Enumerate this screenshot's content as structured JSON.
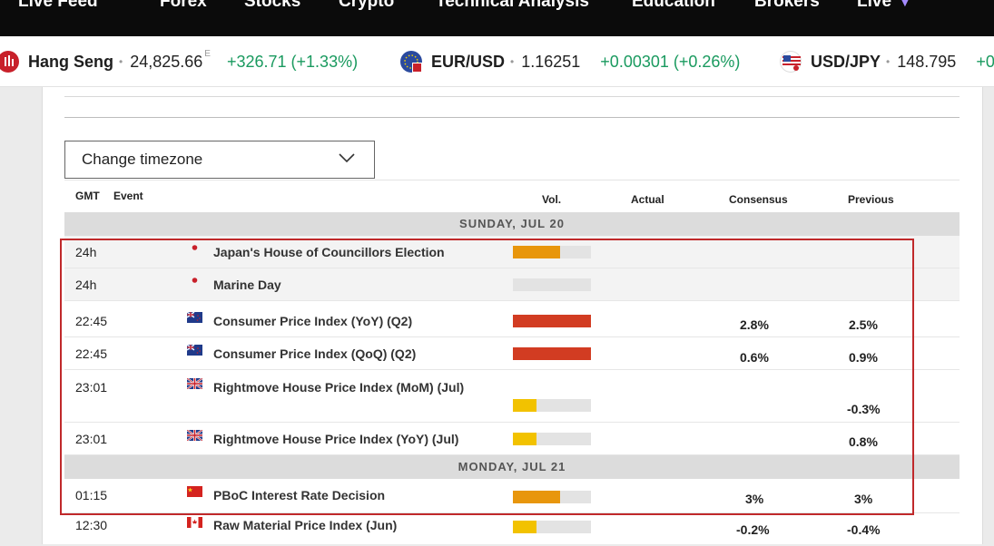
{
  "topnav": {
    "items": [
      "Live Feed",
      "Forex",
      "Stocks",
      "Crypto",
      "Technical Analysis",
      "Education",
      "Brokers",
      "Live"
    ],
    "chevron_icon": "chevron-down-icon"
  },
  "ticker": [
    {
      "symbol": "Hang Seng",
      "value": "24,825.66",
      "sup": "E",
      "change": "+326.71 (+1.33%)",
      "icon": "hang-seng-icon"
    },
    {
      "symbol": "EUR/USD",
      "value": "1.16251",
      "sup": "",
      "change": "+0.00301 (+0.26%)",
      "icon": "eur-usd-icon"
    },
    {
      "symbol": "USD/JPY",
      "value": "148.795",
      "sup": "",
      "change": "+0",
      "icon": "usd-jpy-icon"
    }
  ],
  "timezone": {
    "label": "Change timezone"
  },
  "table": {
    "headers": {
      "gmt": "GMT",
      "event": "Event",
      "vol": "Vol.",
      "actual": "Actual",
      "consensus": "Consensus",
      "previous": "Previous"
    },
    "days": [
      {
        "label": "SUNDAY, JUL 20",
        "rows": [
          {
            "time": "24h",
            "flag": "japan",
            "event": "Japan's House of Councillors Election",
            "volatility": 0.6,
            "vol_color": "#e8960c",
            "actual": "",
            "consensus": "",
            "previous": ""
          },
          {
            "time": "24h",
            "flag": "japan",
            "event": "Marine Day",
            "volatility": 0,
            "vol_color": "#e8960c",
            "actual": "",
            "consensus": "",
            "previous": ""
          },
          {
            "time": "22:45",
            "flag": "new-zealand",
            "event": "Consumer Price Index (YoY) (Q2)",
            "volatility": 1,
            "vol_color": "#d23c22",
            "actual": "",
            "consensus": "2.8%",
            "previous": "2.5%"
          },
          {
            "time": "22:45",
            "flag": "new-zealand",
            "event": "Consumer Price Index (QoQ) (Q2)",
            "volatility": 1,
            "vol_color": "#d23c22",
            "actual": "",
            "consensus": "0.6%",
            "previous": "0.9%"
          },
          {
            "time": "23:01",
            "flag": "united-kingdom",
            "event": "Rightmove House Price Index (MoM) (Jul)",
            "volatility": 0.3,
            "vol_color": "#f2c200",
            "actual": "",
            "consensus": "",
            "previous": "-0.3%"
          },
          {
            "time": "23:01",
            "flag": "united-kingdom",
            "event": "Rightmove House Price Index (YoY) (Jul)",
            "volatility": 0.3,
            "vol_color": "#f2c200",
            "actual": "",
            "consensus": "",
            "previous": "0.8%"
          }
        ]
      },
      {
        "label": "MONDAY, JUL 21",
        "rows": [
          {
            "time": "01:15",
            "flag": "china",
            "event": "PBoC Interest Rate Decision",
            "volatility": 0.6,
            "vol_color": "#e8960c",
            "actual": "",
            "consensus": "3%",
            "previous": "3%"
          },
          {
            "time": "12:30",
            "flag": "canada",
            "event": "Raw Material Price Index (Jun)",
            "volatility": 0.3,
            "vol_color": "#f2c200",
            "actual": "",
            "consensus": "-0.2%",
            "previous": "-0.4%"
          }
        ]
      }
    ]
  }
}
